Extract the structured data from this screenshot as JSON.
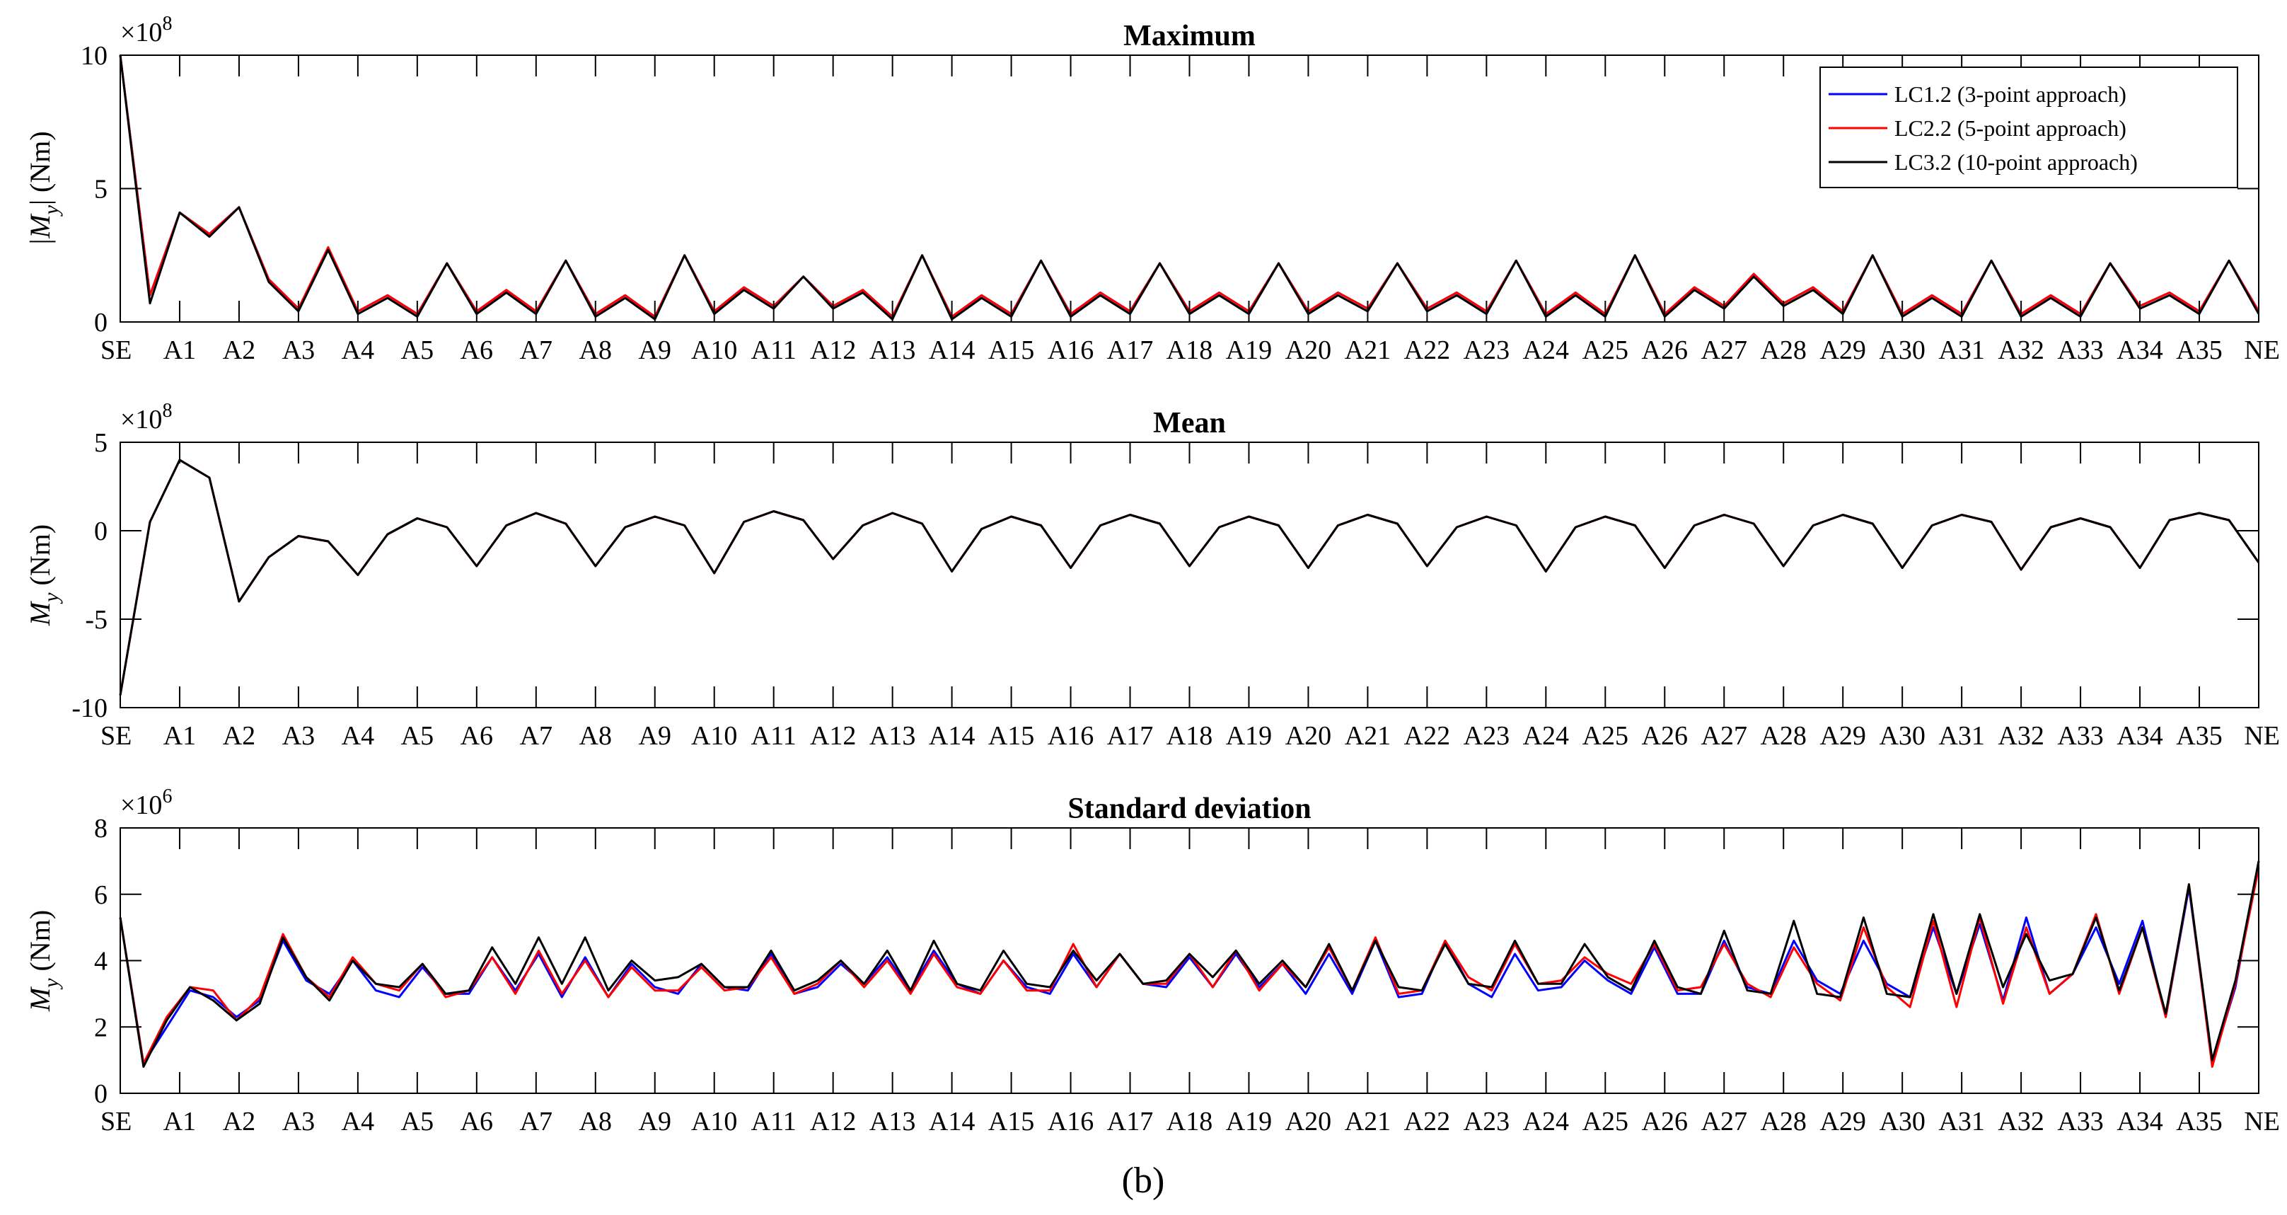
{
  "caption": "(b)",
  "x_tick_labels": [
    "SE",
    "A1",
    "A2",
    "A3",
    "A4",
    "A5",
    "A6",
    "A7",
    "A8",
    "A9",
    "A10",
    "A11",
    "A12",
    "A13",
    "A14",
    "A15",
    "A16",
    "A17",
    "A18",
    "A19",
    "A20",
    "A21",
    "A22",
    "A23",
    "A24",
    "A25",
    "A26",
    "A27",
    "A28",
    "A29",
    "A30",
    "A31",
    "A32",
    "A33",
    "A34",
    "A35",
    "NE"
  ],
  "legend": [
    {
      "label": "LC1.2 (3-point approach)",
      "color": "#0000ff"
    },
    {
      "label": "LC2.2 (5-point approach)",
      "color": "#ff0000"
    },
    {
      "label": "LC3.2 (10-point approach)",
      "color": "#000000"
    }
  ],
  "chart_data": [
    {
      "type": "line",
      "title": "Maximum",
      "ylabel_main": "|M",
      "ylabel_sub": "y",
      "ylabel_tail": "| (Nm)",
      "exponent_base": "×10",
      "exponent_power": "8",
      "ylim": [
        0,
        10
      ],
      "yticks": [
        0,
        5,
        10
      ],
      "ytick_labels": [
        "0",
        "5",
        "10"
      ],
      "grid": false,
      "legend_position": "top-right",
      "x_range": [
        0,
        72
      ],
      "series": [
        {
          "name": "LC1.2 (3-point approach)",
          "color": "#0000ff",
          "values": [
            10,
            1,
            4.1,
            3.3,
            4.3,
            1.6,
            0.5,
            2.7,
            0.4,
            1.0,
            0.3,
            2.2,
            0.4,
            1.2,
            0.4,
            2.3,
            0.3,
            1.0,
            0.2,
            2.5,
            0.4,
            1.3,
            0.6,
            1.7,
            0.6,
            1.2,
            0.2,
            2.5,
            0.2,
            1.0,
            0.3,
            2.3,
            0.3,
            1.1,
            0.4,
            2.2,
            0.4,
            1.1,
            0.4,
            2.2,
            0.4,
            1.1,
            0.5,
            2.2,
            0.5,
            1.1,
            0.4,
            2.3,
            0.3,
            1.1,
            0.3,
            2.5,
            0.3,
            1.3,
            0.6,
            1.8,
            0.7,
            1.3,
            0.4,
            2.5,
            0.3,
            1.0,
            0.3,
            2.3,
            0.3,
            1.0,
            0.3,
            2.2,
            0.6,
            1.1,
            0.4,
            2.3,
            0.4
          ]
        },
        {
          "name": "LC2.2 (5-point approach)",
          "color": "#ff0000",
          "values": [
            10,
            1,
            4.1,
            3.3,
            4.3,
            1.6,
            0.5,
            2.8,
            0.4,
            1.0,
            0.3,
            2.2,
            0.4,
            1.2,
            0.4,
            2.3,
            0.3,
            1.0,
            0.2,
            2.5,
            0.4,
            1.3,
            0.6,
            1.7,
            0.6,
            1.2,
            0.2,
            2.5,
            0.2,
            1.0,
            0.3,
            2.3,
            0.3,
            1.1,
            0.4,
            2.2,
            0.4,
            1.1,
            0.4,
            2.2,
            0.4,
            1.1,
            0.5,
            2.2,
            0.5,
            1.1,
            0.4,
            2.3,
            0.3,
            1.1,
            0.3,
            2.5,
            0.3,
            1.3,
            0.6,
            1.8,
            0.7,
            1.3,
            0.4,
            2.5,
            0.3,
            1.0,
            0.3,
            2.3,
            0.3,
            1.0,
            0.3,
            2.2,
            0.6,
            1.1,
            0.4,
            2.3,
            0.4
          ]
        },
        {
          "name": "LC3.2 (10-point approach)",
          "color": "#000000",
          "values": [
            10,
            0.7,
            4.1,
            3.2,
            4.3,
            1.5,
            0.4,
            2.7,
            0.3,
            0.9,
            0.2,
            2.2,
            0.3,
            1.1,
            0.3,
            2.3,
            0.2,
            0.9,
            0.1,
            2.5,
            0.3,
            1.2,
            0.5,
            1.7,
            0.5,
            1.1,
            0.1,
            2.5,
            0.1,
            0.9,
            0.2,
            2.3,
            0.2,
            1.0,
            0.3,
            2.2,
            0.3,
            1.0,
            0.3,
            2.2,
            0.3,
            1.0,
            0.4,
            2.2,
            0.4,
            1.0,
            0.3,
            2.3,
            0.2,
            1.0,
            0.2,
            2.5,
            0.2,
            1.2,
            0.5,
            1.7,
            0.6,
            1.2,
            0.3,
            2.5,
            0.2,
            0.9,
            0.2,
            2.3,
            0.2,
            0.9,
            0.2,
            2.2,
            0.5,
            1.0,
            0.3,
            2.3,
            0.3
          ]
        }
      ]
    },
    {
      "type": "line",
      "title": "Mean",
      "ylabel_main": "M",
      "ylabel_sub": "y",
      "ylabel_tail": " (Nm)",
      "exponent_base": "×10",
      "exponent_power": "8",
      "ylim": [
        -10,
        5
      ],
      "yticks": [
        -10,
        -5,
        0,
        5
      ],
      "ytick_labels": [
        "-10",
        "-5",
        "0",
        "5"
      ],
      "grid": false,
      "x_range": [
        0,
        72
      ],
      "series": [
        {
          "name": "LC1.2 (3-point approach)",
          "color": "#0000ff",
          "values": [
            -9.3,
            0.5,
            4,
            3,
            -4,
            -1.5,
            -0.3,
            -0.6,
            -2.5,
            -0.2,
            0.7,
            0.2,
            -2,
            0.3,
            1,
            0.4,
            -2,
            0.2,
            0.8,
            0.3,
            -2.4,
            0.5,
            1.1,
            0.6,
            -1.6,
            0.3,
            1,
            0.4,
            -2.3,
            0.1,
            0.8,
            0.3,
            -2.1,
            0.3,
            0.9,
            0.4,
            -2.0,
            0.2,
            0.8,
            0.3,
            -2.1,
            0.3,
            0.9,
            0.4,
            -2.0,
            0.2,
            0.8,
            0.3,
            -2.3,
            0.2,
            0.8,
            0.3,
            -2.1,
            0.3,
            0.9,
            0.4,
            -2.0,
            0.3,
            0.9,
            0.4,
            -2.1,
            0.3,
            0.9,
            0.5,
            -2.2,
            0.2,
            0.7,
            0.2,
            -2.1,
            0.6,
            1.0,
            0.6,
            -1.8
          ]
        },
        {
          "name": "LC2.2 (5-point approach)",
          "color": "#ff0000",
          "values": [
            -9.3,
            0.5,
            4,
            3,
            -4,
            -1.5,
            -0.3,
            -0.6,
            -2.5,
            -0.2,
            0.7,
            0.2,
            -2,
            0.3,
            1,
            0.4,
            -2,
            0.2,
            0.8,
            0.3,
            -2.4,
            0.5,
            1.1,
            0.6,
            -1.6,
            0.3,
            1,
            0.4,
            -2.3,
            0.1,
            0.8,
            0.3,
            -2.1,
            0.3,
            0.9,
            0.4,
            -2.0,
            0.2,
            0.8,
            0.3,
            -2.1,
            0.3,
            0.9,
            0.4,
            -2.0,
            0.2,
            0.8,
            0.3,
            -2.3,
            0.2,
            0.8,
            0.3,
            -2.1,
            0.3,
            0.9,
            0.4,
            -2.0,
            0.3,
            0.9,
            0.4,
            -2.1,
            0.3,
            0.9,
            0.5,
            -2.2,
            0.2,
            0.7,
            0.2,
            -2.1,
            0.6,
            1.0,
            0.6,
            -1.8
          ]
        },
        {
          "name": "LC3.2 (10-point approach)",
          "color": "#000000",
          "values": [
            -9.3,
            0.5,
            4,
            3,
            -4,
            -1.5,
            -0.3,
            -0.6,
            -2.5,
            -0.2,
            0.7,
            0.2,
            -2,
            0.3,
            1,
            0.4,
            -2,
            0.2,
            0.8,
            0.3,
            -2.4,
            0.5,
            1.1,
            0.6,
            -1.6,
            0.3,
            1,
            0.4,
            -2.3,
            0.1,
            0.8,
            0.3,
            -2.1,
            0.3,
            0.9,
            0.4,
            -2.0,
            0.2,
            0.8,
            0.3,
            -2.1,
            0.3,
            0.9,
            0.4,
            -2.0,
            0.2,
            0.8,
            0.3,
            -2.3,
            0.2,
            0.8,
            0.3,
            -2.1,
            0.3,
            0.9,
            0.4,
            -2.0,
            0.3,
            0.9,
            0.4,
            -2.1,
            0.3,
            0.9,
            0.5,
            -2.2,
            0.2,
            0.7,
            0.2,
            -2.1,
            0.6,
            1.0,
            0.6,
            -1.8
          ]
        }
      ]
    },
    {
      "type": "line",
      "title": "Standard deviation",
      "ylabel_main": "M",
      "ylabel_sub": "y",
      "ylabel_tail": " (Nm)",
      "exponent_base": "×10",
      "exponent_power": "6",
      "ylim": [
        0,
        8
      ],
      "yticks": [
        0,
        2,
        4,
        6,
        8
      ],
      "ytick_labels": [
        "0",
        "2",
        "4",
        "6",
        "8"
      ],
      "grid": false,
      "x_range": [
        0,
        72
      ],
      "series": [
        {
          "name": "LC1.2 (3-point approach)",
          "color": "#0000ff",
          "values": [
            5.3,
            0.9,
            2.0,
            3.1,
            2.9,
            2.3,
            2.8,
            4.6,
            3.4,
            3.0,
            4.0,
            3.1,
            2.9,
            3.8,
            3.0,
            3.0,
            4.1,
            3.1,
            4.2,
            2.9,
            4.1,
            2.9,
            3.9,
            3.2,
            3.0,
            3.9,
            3.2,
            3.1,
            4.2,
            3.0,
            3.2,
            3.9,
            3.3,
            4.1,
            3.1,
            4.3,
            3.3,
            3.0,
            4.0,
            3.2,
            3.0,
            4.2,
            3.2,
            4.2,
            3.3,
            3.2,
            4.1,
            3.2,
            4.2,
            3.2,
            3.9,
            3.0,
            4.2,
            3.0,
            4.6,
            2.9,
            3.0,
            4.6,
            3.3,
            2.9,
            4.2,
            3.1,
            3.2,
            4.0,
            3.4,
            3.0,
            4.4,
            3.0,
            3.0,
            4.6,
            3.2,
            3.0,
            4.6,
            3.4,
            3.0,
            4.6,
            3.3,
            2.9,
            5.0,
            3.0,
            5.1,
            2.8,
            5.3,
            3.0,
            3.6,
            5.0,
            3.3,
            5.2,
            2.3,
            6.2,
            0.9,
            3.2,
            7.0
          ]
        },
        {
          "name": "LC2.2 (5-point approach)",
          "color": "#ff0000",
          "values": [
            5.3,
            0.9,
            2.3,
            3.2,
            3.1,
            2.2,
            2.9,
            4.8,
            3.5,
            2.9,
            4.1,
            3.3,
            3.1,
            3.9,
            2.9,
            3.1,
            4.1,
            3.0,
            4.3,
            3.0,
            4.0,
            2.9,
            3.8,
            3.1,
            3.1,
            3.8,
            3.1,
            3.2,
            4.1,
            3.0,
            3.3,
            4.0,
            3.2,
            4.0,
            3.0,
            4.2,
            3.2,
            3.0,
            4.0,
            3.1,
            3.1,
            4.5,
            3.2,
            4.2,
            3.3,
            3.3,
            4.2,
            3.2,
            4.3,
            3.1,
            3.9,
            3.2,
            4.4,
            3.1,
            4.7,
            3.0,
            3.1,
            4.6,
            3.5,
            3.1,
            4.5,
            3.3,
            3.4,
            4.1,
            3.6,
            3.3,
            4.5,
            3.1,
            3.2,
            4.5,
            3.3,
            2.9,
            4.4,
            3.3,
            2.8,
            5.0,
            3.2,
            2.6,
            5.2,
            2.6,
            5.3,
            2.7,
            5.0,
            3.0,
            3.6,
            5.4,
            3.0,
            5.0,
            2.3,
            6.3,
            0.8,
            3.3,
            6.8
          ]
        },
        {
          "name": "LC3.2 (10-point approach)",
          "color": "#000000",
          "values": [
            5.3,
            0.8,
            2.2,
            3.2,
            2.8,
            2.2,
            2.7,
            4.7,
            3.5,
            2.8,
            4.0,
            3.3,
            3.2,
            3.9,
            3.0,
            3.1,
            4.4,
            3.3,
            4.7,
            3.3,
            4.7,
            3.1,
            4.0,
            3.4,
            3.5,
            3.9,
            3.2,
            3.2,
            4.3,
            3.1,
            3.4,
            4.0,
            3.3,
            4.3,
            3.1,
            4.6,
            3.3,
            3.1,
            4.3,
            3.3,
            3.2,
            4.3,
            3.4,
            4.2,
            3.3,
            3.4,
            4.2,
            3.5,
            4.3,
            3.3,
            4.0,
            3.2,
            4.5,
            3.1,
            4.6,
            3.2,
            3.1,
            4.5,
            3.3,
            3.2,
            4.6,
            3.3,
            3.3,
            4.5,
            3.5,
            3.1,
            4.6,
            3.2,
            3.0,
            4.9,
            3.1,
            3.0,
            5.2,
            3.0,
            2.9,
            5.3,
            3.0,
            2.9,
            5.4,
            3.0,
            5.4,
            3.2,
            4.8,
            3.4,
            3.6,
            5.3,
            3.1,
            5.0,
            2.4,
            6.3,
            1.0,
            3.4,
            7.0
          ]
        }
      ]
    }
  ]
}
